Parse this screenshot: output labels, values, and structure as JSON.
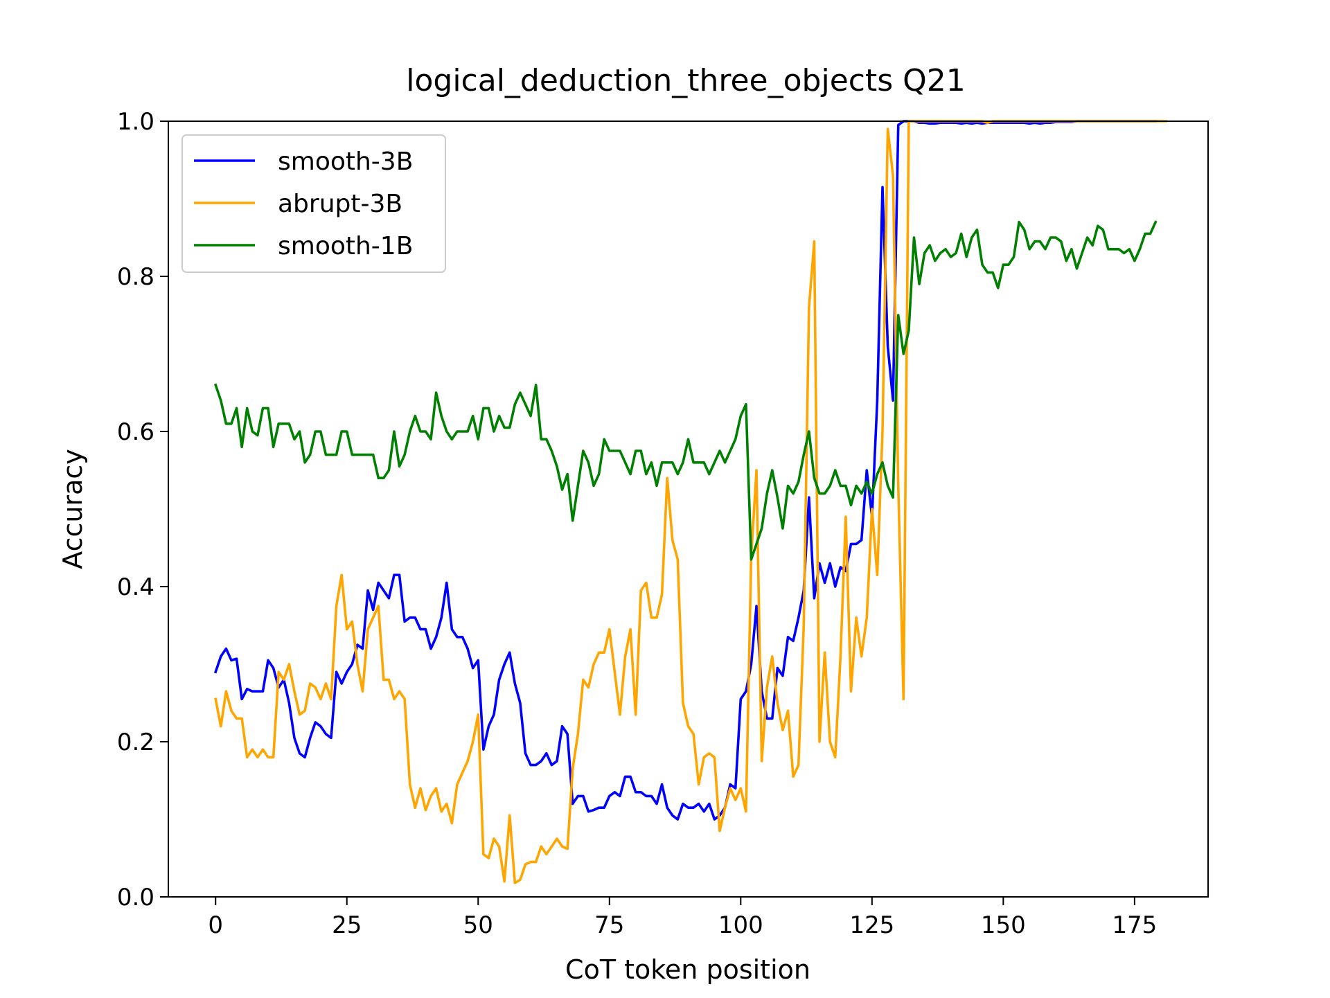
{
  "chart_data": {
    "type": "line",
    "title": "logical_deduction_three_objects Q21",
    "xlabel": "CoT token position",
    "ylabel": "Accuracy",
    "xlim": [
      -9,
      189
    ],
    "ylim": [
      0.0,
      1.0
    ],
    "xticks": [
      0,
      25,
      50,
      75,
      100,
      125,
      150,
      175
    ],
    "xtick_labels": [
      "0",
      "25",
      "50",
      "75",
      "100",
      "125",
      "150",
      "175"
    ],
    "yticks": [
      0.0,
      0.2,
      0.4,
      0.6,
      0.8,
      1.0
    ],
    "ytick_labels": [
      "0.0",
      "0.2",
      "0.4",
      "0.6",
      "0.8",
      "1.0"
    ],
    "grid": false,
    "legend": {
      "placement": "upper-left"
    },
    "series": [
      {
        "name": "smooth-3B",
        "color": "#0000ff",
        "values": [
          0.29,
          0.31,
          0.32,
          0.305,
          0.307,
          0.255,
          0.268,
          0.265,
          0.265,
          0.265,
          0.305,
          0.295,
          0.27,
          0.28,
          0.25,
          0.205,
          0.185,
          0.18,
          0.205,
          0.225,
          0.22,
          0.21,
          0.205,
          0.29,
          0.275,
          0.29,
          0.3,
          0.325,
          0.32,
          0.395,
          0.37,
          0.405,
          0.395,
          0.385,
          0.415,
          0.415,
          0.355,
          0.36,
          0.36,
          0.345,
          0.345,
          0.32,
          0.335,
          0.36,
          0.405,
          0.345,
          0.335,
          0.335,
          0.32,
          0.295,
          0.305,
          0.19,
          0.22,
          0.235,
          0.28,
          0.3,
          0.315,
          0.275,
          0.25,
          0.185,
          0.17,
          0.17,
          0.175,
          0.185,
          0.17,
          0.175,
          0.22,
          0.21,
          0.12,
          0.13,
          0.13,
          0.11,
          0.112,
          0.115,
          0.115,
          0.13,
          0.135,
          0.13,
          0.155,
          0.155,
          0.135,
          0.135,
          0.13,
          0.13,
          0.12,
          0.145,
          0.115,
          0.105,
          0.1,
          0.12,
          0.115,
          0.115,
          0.12,
          0.11,
          0.12,
          0.1,
          0.105,
          0.115,
          0.145,
          0.14,
          0.255,
          0.265,
          0.3,
          0.375,
          0.265,
          0.23,
          0.23,
          0.295,
          0.285,
          0.335,
          0.33,
          0.36,
          0.395,
          0.515,
          0.385,
          0.43,
          0.405,
          0.43,
          0.4,
          0.425,
          0.42,
          0.455,
          0.455,
          0.46,
          0.55,
          0.49,
          0.64,
          0.915,
          0.71,
          0.64,
          0.995,
          1.0,
          1.0,
          1.0,
          0.998,
          0.998,
          0.997,
          0.997,
          0.998,
          0.998,
          0.998,
          0.998,
          0.997,
          0.998,
          0.997,
          0.998,
          0.997,
          0.998,
          0.998,
          0.998,
          0.998,
          0.998,
          0.998,
          0.998,
          0.998,
          0.997,
          0.998,
          0.997,
          0.998,
          0.998,
          0.999,
          0.999,
          0.999,
          0.999,
          1.0,
          1.0,
          1.0,
          1.0,
          1.0,
          1.0,
          1.0,
          1.0,
          1.0,
          1.0,
          1.0,
          1.0,
          1.0,
          1.0,
          1.0,
          1.0
        ]
      },
      {
        "name": "abrupt-3B",
        "color": "#ffa500",
        "values": [
          0.255,
          0.22,
          0.265,
          0.24,
          0.23,
          0.23,
          0.18,
          0.19,
          0.18,
          0.19,
          0.18,
          0.18,
          0.29,
          0.28,
          0.3,
          0.265,
          0.235,
          0.24,
          0.275,
          0.27,
          0.255,
          0.275,
          0.255,
          0.375,
          0.415,
          0.345,
          0.355,
          0.3,
          0.265,
          0.345,
          0.36,
          0.375,
          0.28,
          0.28,
          0.255,
          0.265,
          0.255,
          0.145,
          0.115,
          0.14,
          0.112,
          0.13,
          0.14,
          0.11,
          0.12,
          0.095,
          0.145,
          0.16,
          0.175,
          0.2,
          0.235,
          0.055,
          0.05,
          0.075,
          0.065,
          0.02,
          0.105,
          0.018,
          0.022,
          0.042,
          0.045,
          0.045,
          0.065,
          0.055,
          0.065,
          0.075,
          0.065,
          0.062,
          0.165,
          0.21,
          0.28,
          0.27,
          0.3,
          0.315,
          0.315,
          0.345,
          0.29,
          0.235,
          0.31,
          0.345,
          0.235,
          0.395,
          0.405,
          0.36,
          0.36,
          0.39,
          0.54,
          0.46,
          0.435,
          0.25,
          0.22,
          0.21,
          0.145,
          0.18,
          0.185,
          0.18,
          0.085,
          0.115,
          0.14,
          0.125,
          0.14,
          0.11,
          0.44,
          0.55,
          0.175,
          0.27,
          0.31,
          0.25,
          0.215,
          0.24,
          0.155,
          0.17,
          0.35,
          0.76,
          0.845,
          0.2,
          0.315,
          0.2,
          0.18,
          0.31,
          0.49,
          0.265,
          0.36,
          0.31,
          0.36,
          0.5,
          0.415,
          0.6,
          0.99,
          0.93,
          0.53,
          0.255,
          1.0,
          1.0,
          1.0,
          1.0,
          1.0,
          1.0,
          1.0,
          1.0,
          1.0,
          1.0,
          1.0,
          1.0,
          1.0,
          1.0,
          1.0,
          0.998,
          1.0,
          1.0,
          1.0,
          1.0,
          1.0,
          1.0,
          1.0,
          1.0,
          1.0,
          1.0,
          1.0,
          1.0,
          1.0,
          1.0,
          1.0,
          1.0,
          1.0,
          1.0,
          1.0,
          1.0,
          1.0,
          1.0,
          1.0,
          1.0,
          1.0,
          1.0,
          1.0,
          1.0,
          1.0,
          1.0,
          1.0,
          1.0,
          1.0,
          1.0
        ]
      },
      {
        "name": "smooth-1B",
        "color": "#008000",
        "values": [
          0.66,
          0.64,
          0.61,
          0.61,
          0.63,
          0.58,
          0.63,
          0.6,
          0.595,
          0.63,
          0.63,
          0.58,
          0.61,
          0.61,
          0.61,
          0.59,
          0.6,
          0.56,
          0.57,
          0.6,
          0.6,
          0.57,
          0.57,
          0.57,
          0.6,
          0.6,
          0.57,
          0.57,
          0.57,
          0.57,
          0.57,
          0.54,
          0.54,
          0.55,
          0.6,
          0.555,
          0.57,
          0.6,
          0.62,
          0.6,
          0.6,
          0.59,
          0.65,
          0.62,
          0.6,
          0.59,
          0.6,
          0.6,
          0.6,
          0.62,
          0.59,
          0.63,
          0.63,
          0.6,
          0.62,
          0.605,
          0.605,
          0.635,
          0.65,
          0.635,
          0.62,
          0.66,
          0.59,
          0.59,
          0.575,
          0.555,
          0.525,
          0.545,
          0.485,
          0.53,
          0.575,
          0.56,
          0.53,
          0.545,
          0.59,
          0.575,
          0.575,
          0.575,
          0.56,
          0.545,
          0.575,
          0.575,
          0.545,
          0.56,
          0.53,
          0.56,
          0.56,
          0.56,
          0.545,
          0.56,
          0.59,
          0.56,
          0.56,
          0.56,
          0.545,
          0.56,
          0.575,
          0.56,
          0.575,
          0.59,
          0.62,
          0.635,
          0.435,
          0.455,
          0.475,
          0.52,
          0.55,
          0.515,
          0.475,
          0.53,
          0.52,
          0.535,
          0.57,
          0.6,
          0.54,
          0.52,
          0.52,
          0.53,
          0.55,
          0.53,
          0.53,
          0.505,
          0.53,
          0.52,
          0.535,
          0.52,
          0.545,
          0.56,
          0.53,
          0.515,
          0.75,
          0.7,
          0.73,
          0.85,
          0.79,
          0.83,
          0.84,
          0.82,
          0.83,
          0.835,
          0.825,
          0.83,
          0.855,
          0.825,
          0.85,
          0.86,
          0.815,
          0.805,
          0.805,
          0.785,
          0.815,
          0.815,
          0.825,
          0.87,
          0.86,
          0.835,
          0.845,
          0.845,
          0.835,
          0.85,
          0.85,
          0.845,
          0.82,
          0.835,
          0.81,
          0.83,
          0.85,
          0.84,
          0.865,
          0.86,
          0.835,
          0.835,
          0.835,
          0.83,
          0.835,
          0.82,
          0.835,
          0.855,
          0.855,
          0.87
        ]
      }
    ]
  }
}
